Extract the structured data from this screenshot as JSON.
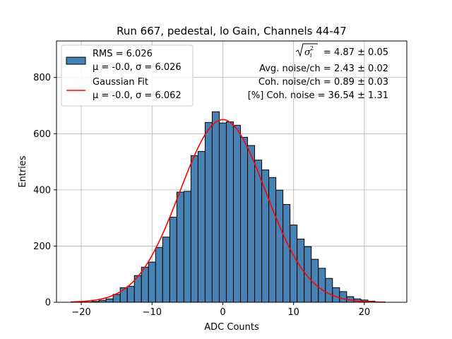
{
  "chart_data": {
    "type": "bar",
    "title": "Run 667, pedestal, lo Gain, Channels 44-47",
    "xlabel": "ADC Counts",
    "ylabel": "Entries",
    "xlim": [
      -23.5,
      26
    ],
    "ylim": [
      0,
      930
    ],
    "grid": true,
    "colors": {
      "bar": "#4682b4",
      "fit": "#ff0000",
      "edge": "#000000",
      "grid": "#b0b0b0"
    },
    "x_ticks": [
      {
        "value": -20,
        "label": "−20"
      },
      {
        "value": -10,
        "label": "−10"
      },
      {
        "value": 0,
        "label": "0"
      },
      {
        "value": 10,
        "label": "10"
      },
      {
        "value": 20,
        "label": "20"
      }
    ],
    "y_ticks": [
      {
        "value": 0,
        "label": "0"
      },
      {
        "value": 200,
        "label": "200"
      },
      {
        "value": 400,
        "label": "400"
      },
      {
        "value": 600,
        "label": "600"
      },
      {
        "value": 800,
        "label": "800"
      }
    ],
    "histogram": {
      "bin_start": -19.5,
      "bin_width": 1,
      "counts": [
        1,
        3,
        7,
        12,
        28,
        52,
        57,
        95,
        125,
        143,
        195,
        232,
        303,
        392,
        395,
        522,
        537,
        640,
        678,
        638,
        642,
        630,
        587,
        558,
        506,
        471,
        444,
        399,
        348,
        275,
        225,
        198,
        153,
        121,
        85,
        52,
        38,
        20,
        12,
        8,
        4,
        1
      ]
    },
    "fit": {
      "mu": -0.0,
      "sigma": 6.062,
      "amplitude": 650,
      "x_range": [
        -21.5,
        23
      ]
    },
    "legend": {
      "position": "top-left",
      "entries": [
        {
          "type": "patch",
          "line1": "RMS = 6.026",
          "line2": "μ = -0.0, σ = 6.026"
        },
        {
          "type": "line",
          "line1": "Gaussian Fit",
          "line2": "μ = -0.0, σ = 6.062"
        }
      ]
    },
    "annotations": {
      "sqrt_sigma_value": "= 4.87 ± 0.05",
      "avg_noise": "Avg. noise/ch = 2.43 ± 0.02",
      "coh_noise": "Coh. noise/ch = 0.89 ± 0.03",
      "coh_noise_pct": "[%] Coh. noise = 36.54 ± 1.31"
    }
  }
}
